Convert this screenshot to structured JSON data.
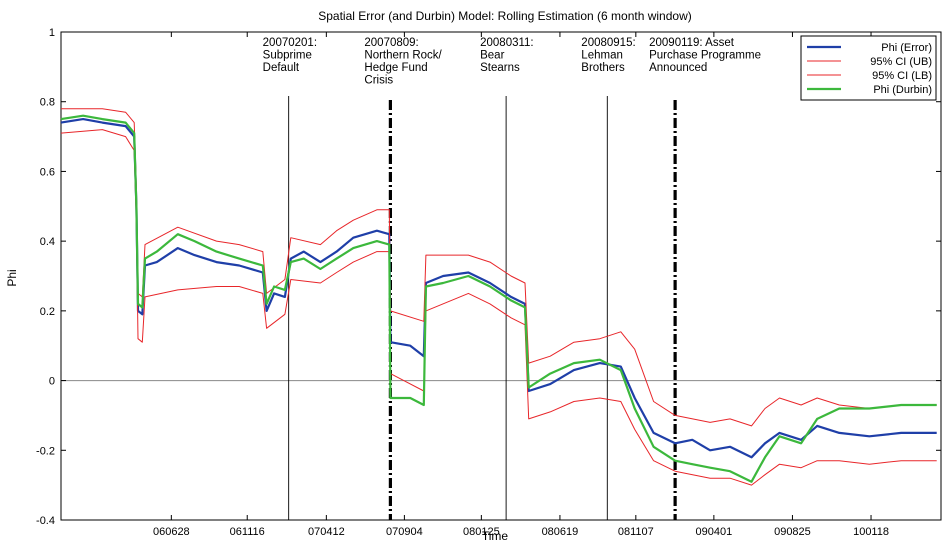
{
  "chart_data": {
    "type": "line",
    "title": "Spatial Error (and Durbin) Model: Rolling Estimation (6 month window)",
    "xlabel": "Time",
    "ylabel": "Phi",
    "ylim": [
      -0.4,
      1
    ],
    "yticks": [
      -0.4,
      -0.2,
      0,
      0.2,
      0.4,
      0.6,
      0.8,
      1
    ],
    "ytick_labels": [
      "-0.4",
      "-0.2",
      "0",
      "0.2",
      "0.4",
      "0.6",
      "0.8",
      "1"
    ],
    "xlim": [
      "2005-12-05",
      "2010-05-28"
    ],
    "xticks": [
      "060628",
      "061116",
      "070412",
      "070904",
      "080125",
      "080619",
      "081107",
      "090401",
      "090825",
      "100118"
    ],
    "legend_position": "top-right",
    "legend": [
      {
        "label": "Phi (Error)",
        "color": "#1f3fa8"
      },
      {
        "label": "95% CI (UB)",
        "color": "#e8262a"
      },
      {
        "label": "95% CI (LB)",
        "color": "#e8262a"
      },
      {
        "label": "Phi (Durbin)",
        "color": "#3cb83c"
      }
    ],
    "events": [
      {
        "date": "2007-02-01",
        "lines": [
          "20070201:",
          "Subprime",
          "Default"
        ],
        "style": "thin"
      },
      {
        "date": "2007-08-09",
        "lines": [
          "20070809:",
          "Northern Rock/",
          "Hedge Fund",
          "Crisis"
        ],
        "style": "thick"
      },
      {
        "date": "2008-03-11",
        "lines": [
          "20080311:",
          "Bear",
          "Stearns"
        ],
        "style": "thin"
      },
      {
        "date": "2008-09-15",
        "lines": [
          "20080915:",
          "Lehman",
          "Brothers"
        ],
        "style": "thin"
      },
      {
        "date": "2009-01-19",
        "lines": [
          "20090119: Asset",
          "Purchase Programme",
          "Announced"
        ],
        "style": "thick"
      }
    ],
    "series": [
      {
        "name": "Phi (Error)",
        "color": "#1f3fa8",
        "width": 2.2,
        "points": [
          [
            "2005-12-05",
            0.74
          ],
          [
            "2006-01-15",
            0.75
          ],
          [
            "2006-02-20",
            0.74
          ],
          [
            "2006-04-04",
            0.73
          ],
          [
            "2006-04-20",
            0.7
          ],
          [
            "2006-04-24",
            0.5
          ],
          [
            "2006-04-27",
            0.2
          ],
          [
            "2006-05-05",
            0.19
          ],
          [
            "2006-05-10",
            0.33
          ],
          [
            "2006-06-01",
            0.34
          ],
          [
            "2006-07-10",
            0.38
          ],
          [
            "2006-08-10",
            0.36
          ],
          [
            "2006-09-20",
            0.34
          ],
          [
            "2006-11-01",
            0.33
          ],
          [
            "2006-12-15",
            0.31
          ],
          [
            "2006-12-22",
            0.2
          ],
          [
            "2007-01-05",
            0.25
          ],
          [
            "2007-01-25",
            0.24
          ],
          [
            "2007-02-05",
            0.35
          ],
          [
            "2007-03-01",
            0.37
          ],
          [
            "2007-04-01",
            0.34
          ],
          [
            "2007-05-01",
            0.37
          ],
          [
            "2007-06-01",
            0.41
          ],
          [
            "2007-07-15",
            0.43
          ],
          [
            "2007-08-07",
            0.42
          ],
          [
            "2007-08-09",
            0.11
          ],
          [
            "2007-09-15",
            0.1
          ],
          [
            "2007-10-10",
            0.07
          ],
          [
            "2007-10-14",
            0.28
          ],
          [
            "2007-11-15",
            0.3
          ],
          [
            "2008-01-01",
            0.31
          ],
          [
            "2008-02-10",
            0.28
          ],
          [
            "2008-03-20",
            0.24
          ],
          [
            "2008-04-15",
            0.22
          ],
          [
            "2008-04-22",
            -0.03
          ],
          [
            "2008-06-01",
            -0.01
          ],
          [
            "2008-07-15",
            0.03
          ],
          [
            "2008-09-01",
            0.05
          ],
          [
            "2008-10-10",
            0.04
          ],
          [
            "2008-11-05",
            -0.05
          ],
          [
            "2008-12-10",
            -0.15
          ],
          [
            "2009-01-19",
            -0.18
          ],
          [
            "2009-02-20",
            -0.17
          ],
          [
            "2009-03-25",
            -0.2
          ],
          [
            "2009-05-01",
            -0.19
          ],
          [
            "2009-06-10",
            -0.22
          ],
          [
            "2009-07-05",
            -0.18
          ],
          [
            "2009-08-01",
            -0.15
          ],
          [
            "2009-09-10",
            -0.17
          ],
          [
            "2009-10-10",
            -0.13
          ],
          [
            "2009-11-20",
            -0.15
          ],
          [
            "2010-01-15",
            -0.16
          ],
          [
            "2010-03-15",
            -0.15
          ],
          [
            "2010-05-20",
            -0.15
          ]
        ]
      },
      {
        "name": "95% CI (UB)",
        "color": "#e8262a",
        "width": 1,
        "points": [
          [
            "2005-12-05",
            0.78
          ],
          [
            "2006-02-20",
            0.78
          ],
          [
            "2006-04-04",
            0.77
          ],
          [
            "2006-04-20",
            0.74
          ],
          [
            "2006-04-24",
            0.55
          ],
          [
            "2006-04-27",
            0.25
          ],
          [
            "2006-05-05",
            0.24
          ],
          [
            "2006-05-10",
            0.39
          ],
          [
            "2006-07-10",
            0.44
          ],
          [
            "2006-09-20",
            0.4
          ],
          [
            "2006-11-01",
            0.39
          ],
          [
            "2006-12-15",
            0.37
          ],
          [
            "2006-12-22",
            0.25
          ],
          [
            "2007-01-25",
            0.29
          ],
          [
            "2007-02-05",
            0.41
          ],
          [
            "2007-04-01",
            0.39
          ],
          [
            "2007-05-01",
            0.43
          ],
          [
            "2007-06-01",
            0.46
          ],
          [
            "2007-07-15",
            0.49
          ],
          [
            "2007-08-07",
            0.49
          ],
          [
            "2007-08-09",
            0.2
          ],
          [
            "2007-10-10",
            0.17
          ],
          [
            "2007-10-14",
            0.36
          ],
          [
            "2008-01-01",
            0.36
          ],
          [
            "2008-02-10",
            0.34
          ],
          [
            "2008-03-20",
            0.3
          ],
          [
            "2008-04-15",
            0.28
          ],
          [
            "2008-04-22",
            0.05
          ],
          [
            "2008-06-01",
            0.07
          ],
          [
            "2008-07-15",
            0.11
          ],
          [
            "2008-09-01",
            0.12
          ],
          [
            "2008-10-10",
            0.14
          ],
          [
            "2008-11-05",
            0.09
          ],
          [
            "2008-12-10",
            -0.06
          ],
          [
            "2009-01-19",
            -0.1
          ],
          [
            "2009-03-25",
            -0.12
          ],
          [
            "2009-05-01",
            -0.11
          ],
          [
            "2009-06-10",
            -0.13
          ],
          [
            "2009-07-05",
            -0.08
          ],
          [
            "2009-08-01",
            -0.05
          ],
          [
            "2009-09-10",
            -0.07
          ],
          [
            "2009-10-10",
            -0.05
          ],
          [
            "2009-11-20",
            -0.07
          ],
          [
            "2010-01-15",
            -0.08
          ],
          [
            "2010-03-15",
            -0.07
          ],
          [
            "2010-05-20",
            -0.07
          ]
        ]
      },
      {
        "name": "95% CI (LB)",
        "color": "#e8262a",
        "width": 1,
        "points": [
          [
            "2005-12-05",
            0.71
          ],
          [
            "2006-02-20",
            0.72
          ],
          [
            "2006-04-04",
            0.7
          ],
          [
            "2006-04-20",
            0.66
          ],
          [
            "2006-04-24",
            0.45
          ],
          [
            "2006-04-27",
            0.12
          ],
          [
            "2006-05-05",
            0.11
          ],
          [
            "2006-05-10",
            0.24
          ],
          [
            "2006-07-10",
            0.26
          ],
          [
            "2006-09-20",
            0.27
          ],
          [
            "2006-11-01",
            0.27
          ],
          [
            "2006-12-15",
            0.25
          ],
          [
            "2006-12-22",
            0.15
          ],
          [
            "2007-01-25",
            0.19
          ],
          [
            "2007-02-05",
            0.29
          ],
          [
            "2007-04-01",
            0.28
          ],
          [
            "2007-05-01",
            0.31
          ],
          [
            "2007-06-01",
            0.34
          ],
          [
            "2007-07-15",
            0.37
          ],
          [
            "2007-08-07",
            0.37
          ],
          [
            "2007-08-09",
            0.02
          ],
          [
            "2007-10-10",
            -0.03
          ],
          [
            "2007-10-14",
            0.2
          ],
          [
            "2008-01-01",
            0.25
          ],
          [
            "2008-02-10",
            0.22
          ],
          [
            "2008-03-20",
            0.18
          ],
          [
            "2008-04-15",
            0.16
          ],
          [
            "2008-04-22",
            -0.11
          ],
          [
            "2008-06-01",
            -0.09
          ],
          [
            "2008-07-15",
            -0.06
          ],
          [
            "2008-09-01",
            -0.05
          ],
          [
            "2008-10-10",
            -0.06
          ],
          [
            "2008-11-05",
            -0.14
          ],
          [
            "2008-12-10",
            -0.23
          ],
          [
            "2009-01-19",
            -0.26
          ],
          [
            "2009-03-25",
            -0.28
          ],
          [
            "2009-05-01",
            -0.28
          ],
          [
            "2009-06-10",
            -0.3
          ],
          [
            "2009-07-05",
            -0.27
          ],
          [
            "2009-08-01",
            -0.24
          ],
          [
            "2009-09-10",
            -0.25
          ],
          [
            "2009-10-10",
            -0.23
          ],
          [
            "2009-11-20",
            -0.23
          ],
          [
            "2010-01-15",
            -0.24
          ],
          [
            "2010-03-15",
            -0.23
          ],
          [
            "2010-05-20",
            -0.23
          ]
        ]
      },
      {
        "name": "Phi (Durbin)",
        "color": "#3cb83c",
        "width": 2.2,
        "points": [
          [
            "2005-12-05",
            0.75
          ],
          [
            "2006-01-15",
            0.76
          ],
          [
            "2006-02-20",
            0.75
          ],
          [
            "2006-04-04",
            0.74
          ],
          [
            "2006-04-20",
            0.71
          ],
          [
            "2006-04-24",
            0.5
          ],
          [
            "2006-04-27",
            0.22
          ],
          [
            "2006-05-05",
            0.21
          ],
          [
            "2006-05-10",
            0.35
          ],
          [
            "2006-06-01",
            0.37
          ],
          [
            "2006-07-10",
            0.42
          ],
          [
            "2006-08-10",
            0.4
          ],
          [
            "2006-09-20",
            0.37
          ],
          [
            "2006-11-01",
            0.35
          ],
          [
            "2006-12-15",
            0.33
          ],
          [
            "2006-12-22",
            0.22
          ],
          [
            "2007-01-05",
            0.27
          ],
          [
            "2007-01-25",
            0.26
          ],
          [
            "2007-02-05",
            0.34
          ],
          [
            "2007-03-01",
            0.35
          ],
          [
            "2007-04-01",
            0.32
          ],
          [
            "2007-05-01",
            0.35
          ],
          [
            "2007-06-01",
            0.38
          ],
          [
            "2007-07-15",
            0.4
          ],
          [
            "2007-08-07",
            0.39
          ],
          [
            "2007-08-09",
            -0.05
          ],
          [
            "2007-09-15",
            -0.05
          ],
          [
            "2007-10-10",
            -0.07
          ],
          [
            "2007-10-14",
            0.27
          ],
          [
            "2007-11-15",
            0.28
          ],
          [
            "2008-01-01",
            0.3
          ],
          [
            "2008-02-10",
            0.27
          ],
          [
            "2008-03-20",
            0.23
          ],
          [
            "2008-04-15",
            0.21
          ],
          [
            "2008-04-22",
            -0.02
          ],
          [
            "2008-06-01",
            0.02
          ],
          [
            "2008-07-15",
            0.05
          ],
          [
            "2008-09-01",
            0.06
          ],
          [
            "2008-10-10",
            0.03
          ],
          [
            "2008-11-05",
            -0.08
          ],
          [
            "2008-12-10",
            -0.19
          ],
          [
            "2009-01-19",
            -0.23
          ],
          [
            "2009-02-20",
            -0.24
          ],
          [
            "2009-03-25",
            -0.25
          ],
          [
            "2009-05-01",
            -0.26
          ],
          [
            "2009-06-10",
            -0.29
          ],
          [
            "2009-07-05",
            -0.22
          ],
          [
            "2009-08-01",
            -0.16
          ],
          [
            "2009-09-10",
            -0.18
          ],
          [
            "2009-10-10",
            -0.11
          ],
          [
            "2009-11-20",
            -0.08
          ],
          [
            "2010-01-15",
            -0.08
          ],
          [
            "2010-03-15",
            -0.07
          ],
          [
            "2010-05-20",
            -0.07
          ]
        ]
      }
    ]
  }
}
